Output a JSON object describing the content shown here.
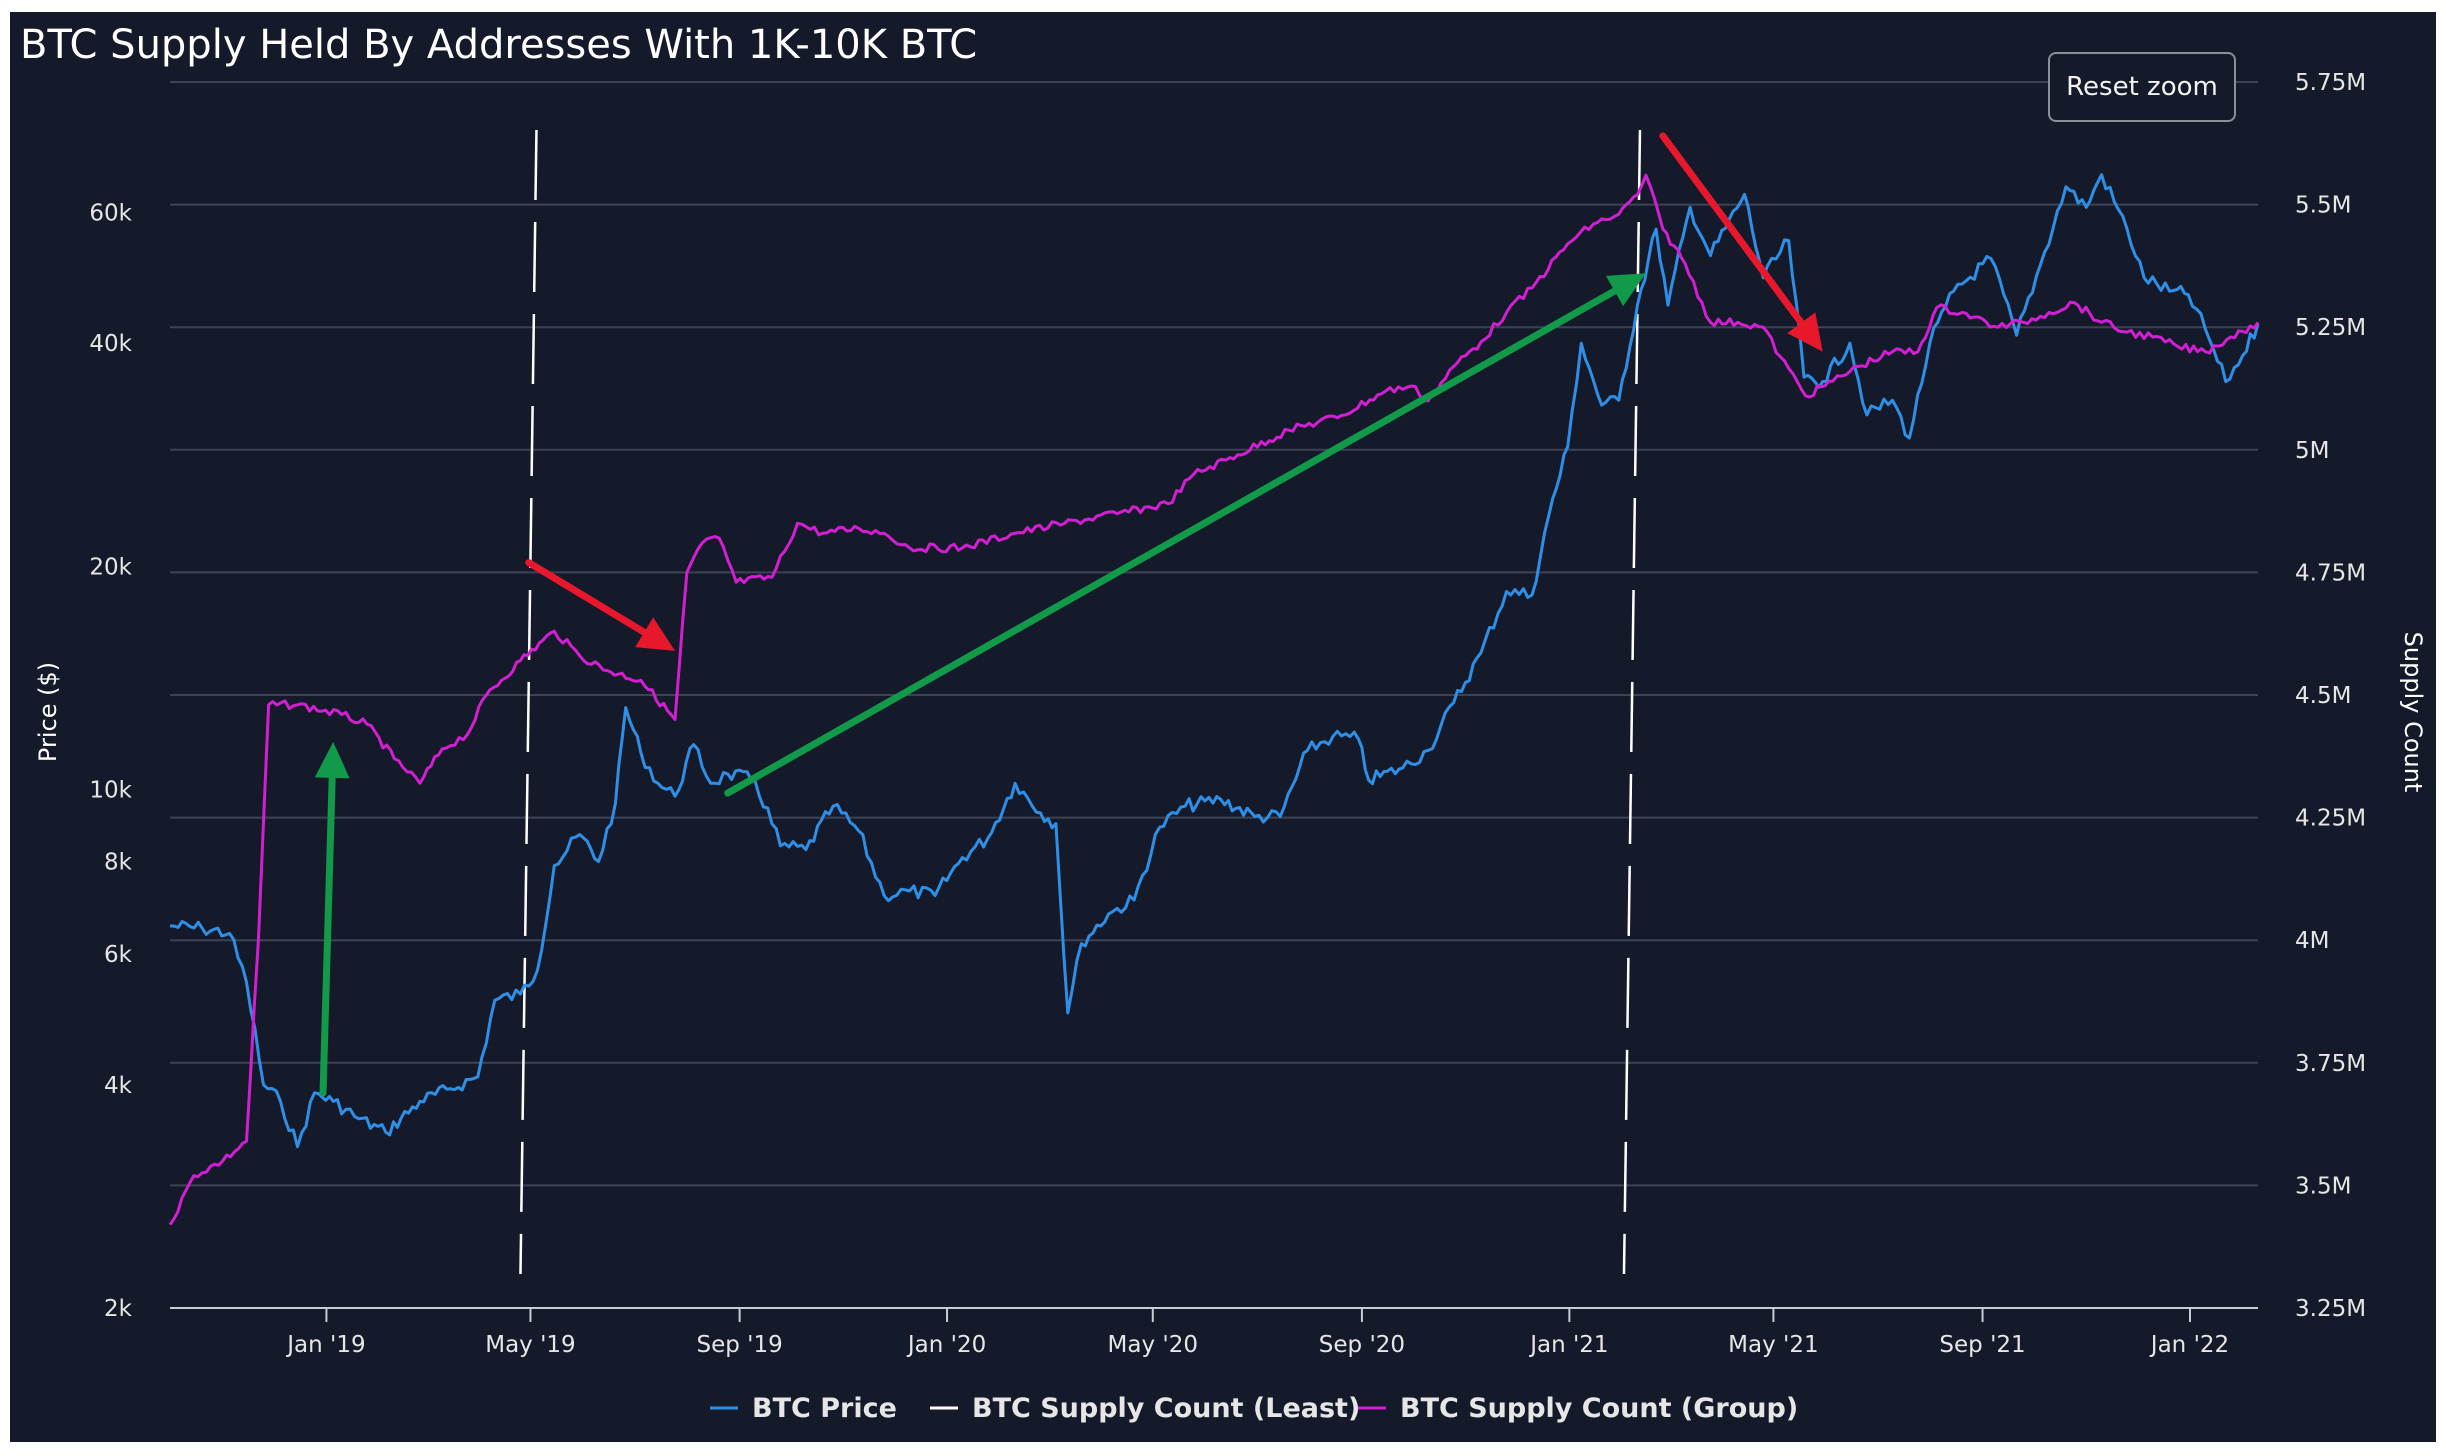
{
  "colors": {
    "background": "#141a2a",
    "grid": "#3c4354",
    "price": "#2f8fe6",
    "group": "#d21fd2",
    "least": "#ffffff",
    "green_arrow": "#119a4a",
    "red_arrow": "#e8182c"
  },
  "reset_zoom_label": "Reset zoom",
  "chart_data": {
    "type": "line",
    "title": "BTC Supply Held By Addresses With 1K-10K BTC",
    "y_left": {
      "label": "Price ($)",
      "scale": "log",
      "range": [
        2000,
        90000
      ],
      "ticks": [
        {
          "v": 2000,
          "label": "2k"
        },
        {
          "v": 4000,
          "label": "4k"
        },
        {
          "v": 6000,
          "label": "6k"
        },
        {
          "v": 8000,
          "label": "8k"
        },
        {
          "v": 10000,
          "label": "10k"
        },
        {
          "v": 20000,
          "label": "20k"
        },
        {
          "v": 40000,
          "label": "40k"
        },
        {
          "v": 60000,
          "label": "60k"
        }
      ]
    },
    "y_right": {
      "label": "Supply Count",
      "range": [
        3250000,
        5750000
      ],
      "ticks": [
        {
          "v": 3250000,
          "label": "3.25M"
        },
        {
          "v": 3500000,
          "label": "3.5M"
        },
        {
          "v": 3750000,
          "label": "3.75M"
        },
        {
          "v": 4000000,
          "label": "4M"
        },
        {
          "v": 4250000,
          "label": "4.25M"
        },
        {
          "v": 4500000,
          "label": "4.5M"
        },
        {
          "v": 4750000,
          "label": "4.75M"
        },
        {
          "v": 5000000,
          "label": "5M"
        },
        {
          "v": 5250000,
          "label": "5.25M"
        },
        {
          "v": 5500000,
          "label": "5.5M"
        },
        {
          "v": 5750000,
          "label": "5.75M"
        }
      ]
    },
    "x_axis": {
      "range": [
        "2018-10-01",
        "2022-02-10"
      ],
      "ticks": [
        {
          "date": "2019-01-01",
          "label": "Jan '19"
        },
        {
          "date": "2019-05-01",
          "label": "May '19"
        },
        {
          "date": "2019-09-01",
          "label": "Sep '19"
        },
        {
          "date": "2020-01-01",
          "label": "Jan '20"
        },
        {
          "date": "2020-05-01",
          "label": "May '20"
        },
        {
          "date": "2020-09-01",
          "label": "Sep '20"
        },
        {
          "date": "2021-01-01",
          "label": "Jan '21"
        },
        {
          "date": "2021-05-01",
          "label": "May '21"
        },
        {
          "date": "2021-09-01",
          "label": "Sep '21"
        },
        {
          "date": "2022-01-01",
          "label": "Jan '22"
        }
      ]
    },
    "legend": {
      "placement": "bottom-center",
      "items": [
        {
          "name": "BTC Price",
          "color": "#2f8fe6"
        },
        {
          "name": "BTC Supply Count (Least)",
          "color": "#ffffff"
        },
        {
          "name": "BTC Supply Count (Group)",
          "color": "#d21fd2"
        }
      ]
    },
    "series": [
      {
        "name": "BTC Price",
        "axis": "left",
        "points": [
          [
            "2018-10-01",
            6550
          ],
          [
            "2018-10-20",
            6500
          ],
          [
            "2018-11-05",
            6400
          ],
          [
            "2018-11-15",
            5500
          ],
          [
            "2018-11-25",
            4000
          ],
          [
            "2018-12-05",
            3800
          ],
          [
            "2018-12-15",
            3300
          ],
          [
            "2018-12-25",
            3900
          ],
          [
            "2019-01-05",
            3800
          ],
          [
            "2019-01-20",
            3600
          ],
          [
            "2019-02-05",
            3450
          ],
          [
            "2019-02-25",
            3800
          ],
          [
            "2019-03-15",
            3950
          ],
          [
            "2019-03-31",
            4100
          ],
          [
            "2019-04-10",
            5200
          ],
          [
            "2019-04-25",
            5300
          ],
          [
            "2019-05-05",
            5700
          ],
          [
            "2019-05-15",
            7900
          ],
          [
            "2019-05-30",
            8700
          ],
          [
            "2019-06-10",
            8000
          ],
          [
            "2019-06-20",
            9600
          ],
          [
            "2019-06-26",
            12900
          ],
          [
            "2019-07-05",
            11200
          ],
          [
            "2019-07-15",
            10200
          ],
          [
            "2019-07-25",
            9800
          ],
          [
            "2019-08-05",
            11500
          ],
          [
            "2019-08-15",
            10200
          ],
          [
            "2019-08-25",
            10500
          ],
          [
            "2019-09-10",
            10300
          ],
          [
            "2019-09-25",
            8400
          ],
          [
            "2019-10-10",
            8300
          ],
          [
            "2019-10-26",
            9500
          ],
          [
            "2019-11-10",
            8800
          ],
          [
            "2019-11-25",
            7200
          ],
          [
            "2019-12-10",
            7300
          ],
          [
            "2019-12-25",
            7200
          ],
          [
            "2020-01-10",
            8100
          ],
          [
            "2020-01-25",
            8600
          ],
          [
            "2020-02-10",
            10200
          ],
          [
            "2020-02-25",
            9300
          ],
          [
            "2020-03-05",
            9000
          ],
          [
            "2020-03-12",
            5000
          ],
          [
            "2020-03-20",
            6200
          ],
          [
            "2020-04-05",
            6800
          ],
          [
            "2020-04-20",
            7100
          ],
          [
            "2020-05-05",
            8900
          ],
          [
            "2020-05-20",
            9500
          ],
          [
            "2020-06-10",
            9700
          ],
          [
            "2020-06-30",
            9200
          ],
          [
            "2020-07-15",
            9200
          ],
          [
            "2020-07-31",
            11300
          ],
          [
            "2020-08-15",
            11800
          ],
          [
            "2020-08-30",
            11700
          ],
          [
            "2020-09-05",
            10300
          ],
          [
            "2020-09-25",
            10700
          ],
          [
            "2020-10-10",
            11300
          ],
          [
            "2020-10-25",
            13100
          ],
          [
            "2020-11-10",
            15300
          ],
          [
            "2020-11-25",
            18500
          ],
          [
            "2020-12-10",
            18300
          ],
          [
            "2020-12-20",
            23500
          ],
          [
            "2020-12-31",
            29000
          ],
          [
            "2021-01-08",
            40000
          ],
          [
            "2021-01-20",
            33000
          ],
          [
            "2021-01-30",
            33500
          ],
          [
            "2021-02-10",
            45000
          ],
          [
            "2021-02-21",
            57000
          ],
          [
            "2021-02-28",
            45000
          ],
          [
            "2021-03-13",
            61000
          ],
          [
            "2021-03-25",
            52500
          ],
          [
            "2021-04-14",
            63500
          ],
          [
            "2021-04-25",
            49000
          ],
          [
            "2021-05-10",
            55000
          ],
          [
            "2021-05-19",
            36000
          ],
          [
            "2021-05-30",
            35500
          ],
          [
            "2021-06-15",
            40000
          ],
          [
            "2021-06-25",
            32000
          ],
          [
            "2021-07-10",
            33500
          ],
          [
            "2021-07-20",
            29800
          ],
          [
            "2021-08-01",
            40000
          ],
          [
            "2021-08-15",
            47000
          ],
          [
            "2021-09-06",
            52000
          ],
          [
            "2021-09-21",
            41000
          ],
          [
            "2021-10-05",
            51000
          ],
          [
            "2021-10-20",
            65000
          ],
          [
            "2021-11-01",
            61000
          ],
          [
            "2021-11-10",
            67500
          ],
          [
            "2021-11-25",
            57000
          ],
          [
            "2021-12-05",
            49000
          ],
          [
            "2021-12-20",
            47000
          ],
          [
            "2021-12-31",
            46500
          ],
          [
            "2022-01-10",
            41800
          ],
          [
            "2022-01-22",
            35500
          ],
          [
            "2022-02-01",
            38500
          ],
          [
            "2022-02-10",
            42500
          ]
        ]
      },
      {
        "name": "BTC Supply Count (Group)",
        "axis": "right",
        "points": [
          [
            "2018-10-01",
            3420000
          ],
          [
            "2018-10-15",
            3520000
          ],
          [
            "2018-11-01",
            3550000
          ],
          [
            "2018-11-15",
            3590000
          ],
          [
            "2018-11-22",
            4000000
          ],
          [
            "2018-11-28",
            4480000
          ],
          [
            "2018-12-15",
            4480000
          ],
          [
            "2019-01-10",
            4460000
          ],
          [
            "2019-01-25",
            4440000
          ],
          [
            "2019-02-10",
            4370000
          ],
          [
            "2019-02-25",
            4320000
          ],
          [
            "2019-03-10",
            4390000
          ],
          [
            "2019-03-25",
            4420000
          ],
          [
            "2019-04-05",
            4500000
          ],
          [
            "2019-04-25",
            4570000
          ],
          [
            "2019-05-15",
            4630000
          ],
          [
            "2019-05-30",
            4580000
          ],
          [
            "2019-06-15",
            4550000
          ],
          [
            "2019-07-05",
            4530000
          ],
          [
            "2019-07-25",
            4450000
          ],
          [
            "2019-08-01",
            4750000
          ],
          [
            "2019-08-10",
            4810000
          ],
          [
            "2019-08-20",
            4820000
          ],
          [
            "2019-08-30",
            4730000
          ],
          [
            "2019-09-20",
            4740000
          ],
          [
            "2019-10-05",
            4850000
          ],
          [
            "2019-10-20",
            4830000
          ],
          [
            "2019-11-10",
            4840000
          ],
          [
            "2019-11-25",
            4830000
          ],
          [
            "2019-12-10",
            4800000
          ],
          [
            "2020-01-10",
            4800000
          ],
          [
            "2020-02-10",
            4830000
          ],
          [
            "2020-03-10",
            4850000
          ],
          [
            "2020-04-10",
            4870000
          ],
          [
            "2020-05-10",
            4890000
          ],
          [
            "2020-05-25",
            4950000
          ],
          [
            "2020-06-20",
            4990000
          ],
          [
            "2020-07-20",
            5040000
          ],
          [
            "2020-08-20",
            5070000
          ],
          [
            "2020-09-15",
            5120000
          ],
          [
            "2020-09-30",
            5130000
          ],
          [
            "2020-10-10",
            5100000
          ],
          [
            "2020-10-25",
            5170000
          ],
          [
            "2020-11-10",
            5220000
          ],
          [
            "2020-11-25",
            5280000
          ],
          [
            "2020-12-10",
            5330000
          ],
          [
            "2020-12-31",
            5420000
          ],
          [
            "2021-01-15",
            5460000
          ],
          [
            "2021-01-30",
            5480000
          ],
          [
            "2021-02-10",
            5520000
          ],
          [
            "2021-02-15",
            5560000
          ],
          [
            "2021-02-25",
            5450000
          ],
          [
            "2021-03-10",
            5380000
          ],
          [
            "2021-03-25",
            5260000
          ],
          [
            "2021-04-10",
            5260000
          ],
          [
            "2021-04-25",
            5250000
          ],
          [
            "2021-05-05",
            5190000
          ],
          [
            "2021-05-20",
            5110000
          ],
          [
            "2021-06-05",
            5140000
          ],
          [
            "2021-06-20",
            5170000
          ],
          [
            "2021-07-10",
            5200000
          ],
          [
            "2021-07-25",
            5200000
          ],
          [
            "2021-08-05",
            5290000
          ],
          [
            "2021-08-20",
            5280000
          ],
          [
            "2021-09-10",
            5250000
          ],
          [
            "2021-09-25",
            5260000
          ],
          [
            "2021-10-10",
            5280000
          ],
          [
            "2021-10-25",
            5300000
          ],
          [
            "2021-11-10",
            5260000
          ],
          [
            "2021-11-25",
            5240000
          ],
          [
            "2021-12-10",
            5230000
          ],
          [
            "2021-12-25",
            5210000
          ],
          [
            "2022-01-10",
            5200000
          ],
          [
            "2022-01-25",
            5230000
          ],
          [
            "2022-02-10",
            5260000
          ]
        ]
      }
    ],
    "annotations": {
      "vertical_markers": [
        "2019-05-01",
        "2021-02-08"
      ],
      "arrows": [
        {
          "color": "green",
          "from": [
            "2018-12-30",
            3900
          ],
          "to": [
            "2019-01-05",
            11600
          ]
        },
        {
          "color": "red",
          "from": [
            "2019-04-30",
            4770000
          ],
          "to": [
            "2019-07-25",
            4590000
          ]
        },
        {
          "color": "green",
          "from": [
            "2019-08-25",
            4300000
          ],
          "to": [
            "2021-02-15",
            5360000
          ]
        },
        {
          "color": "red",
          "from": [
            "2021-02-25",
            5640000
          ],
          "to": [
            "2021-05-30",
            5200000
          ]
        }
      ]
    }
  }
}
